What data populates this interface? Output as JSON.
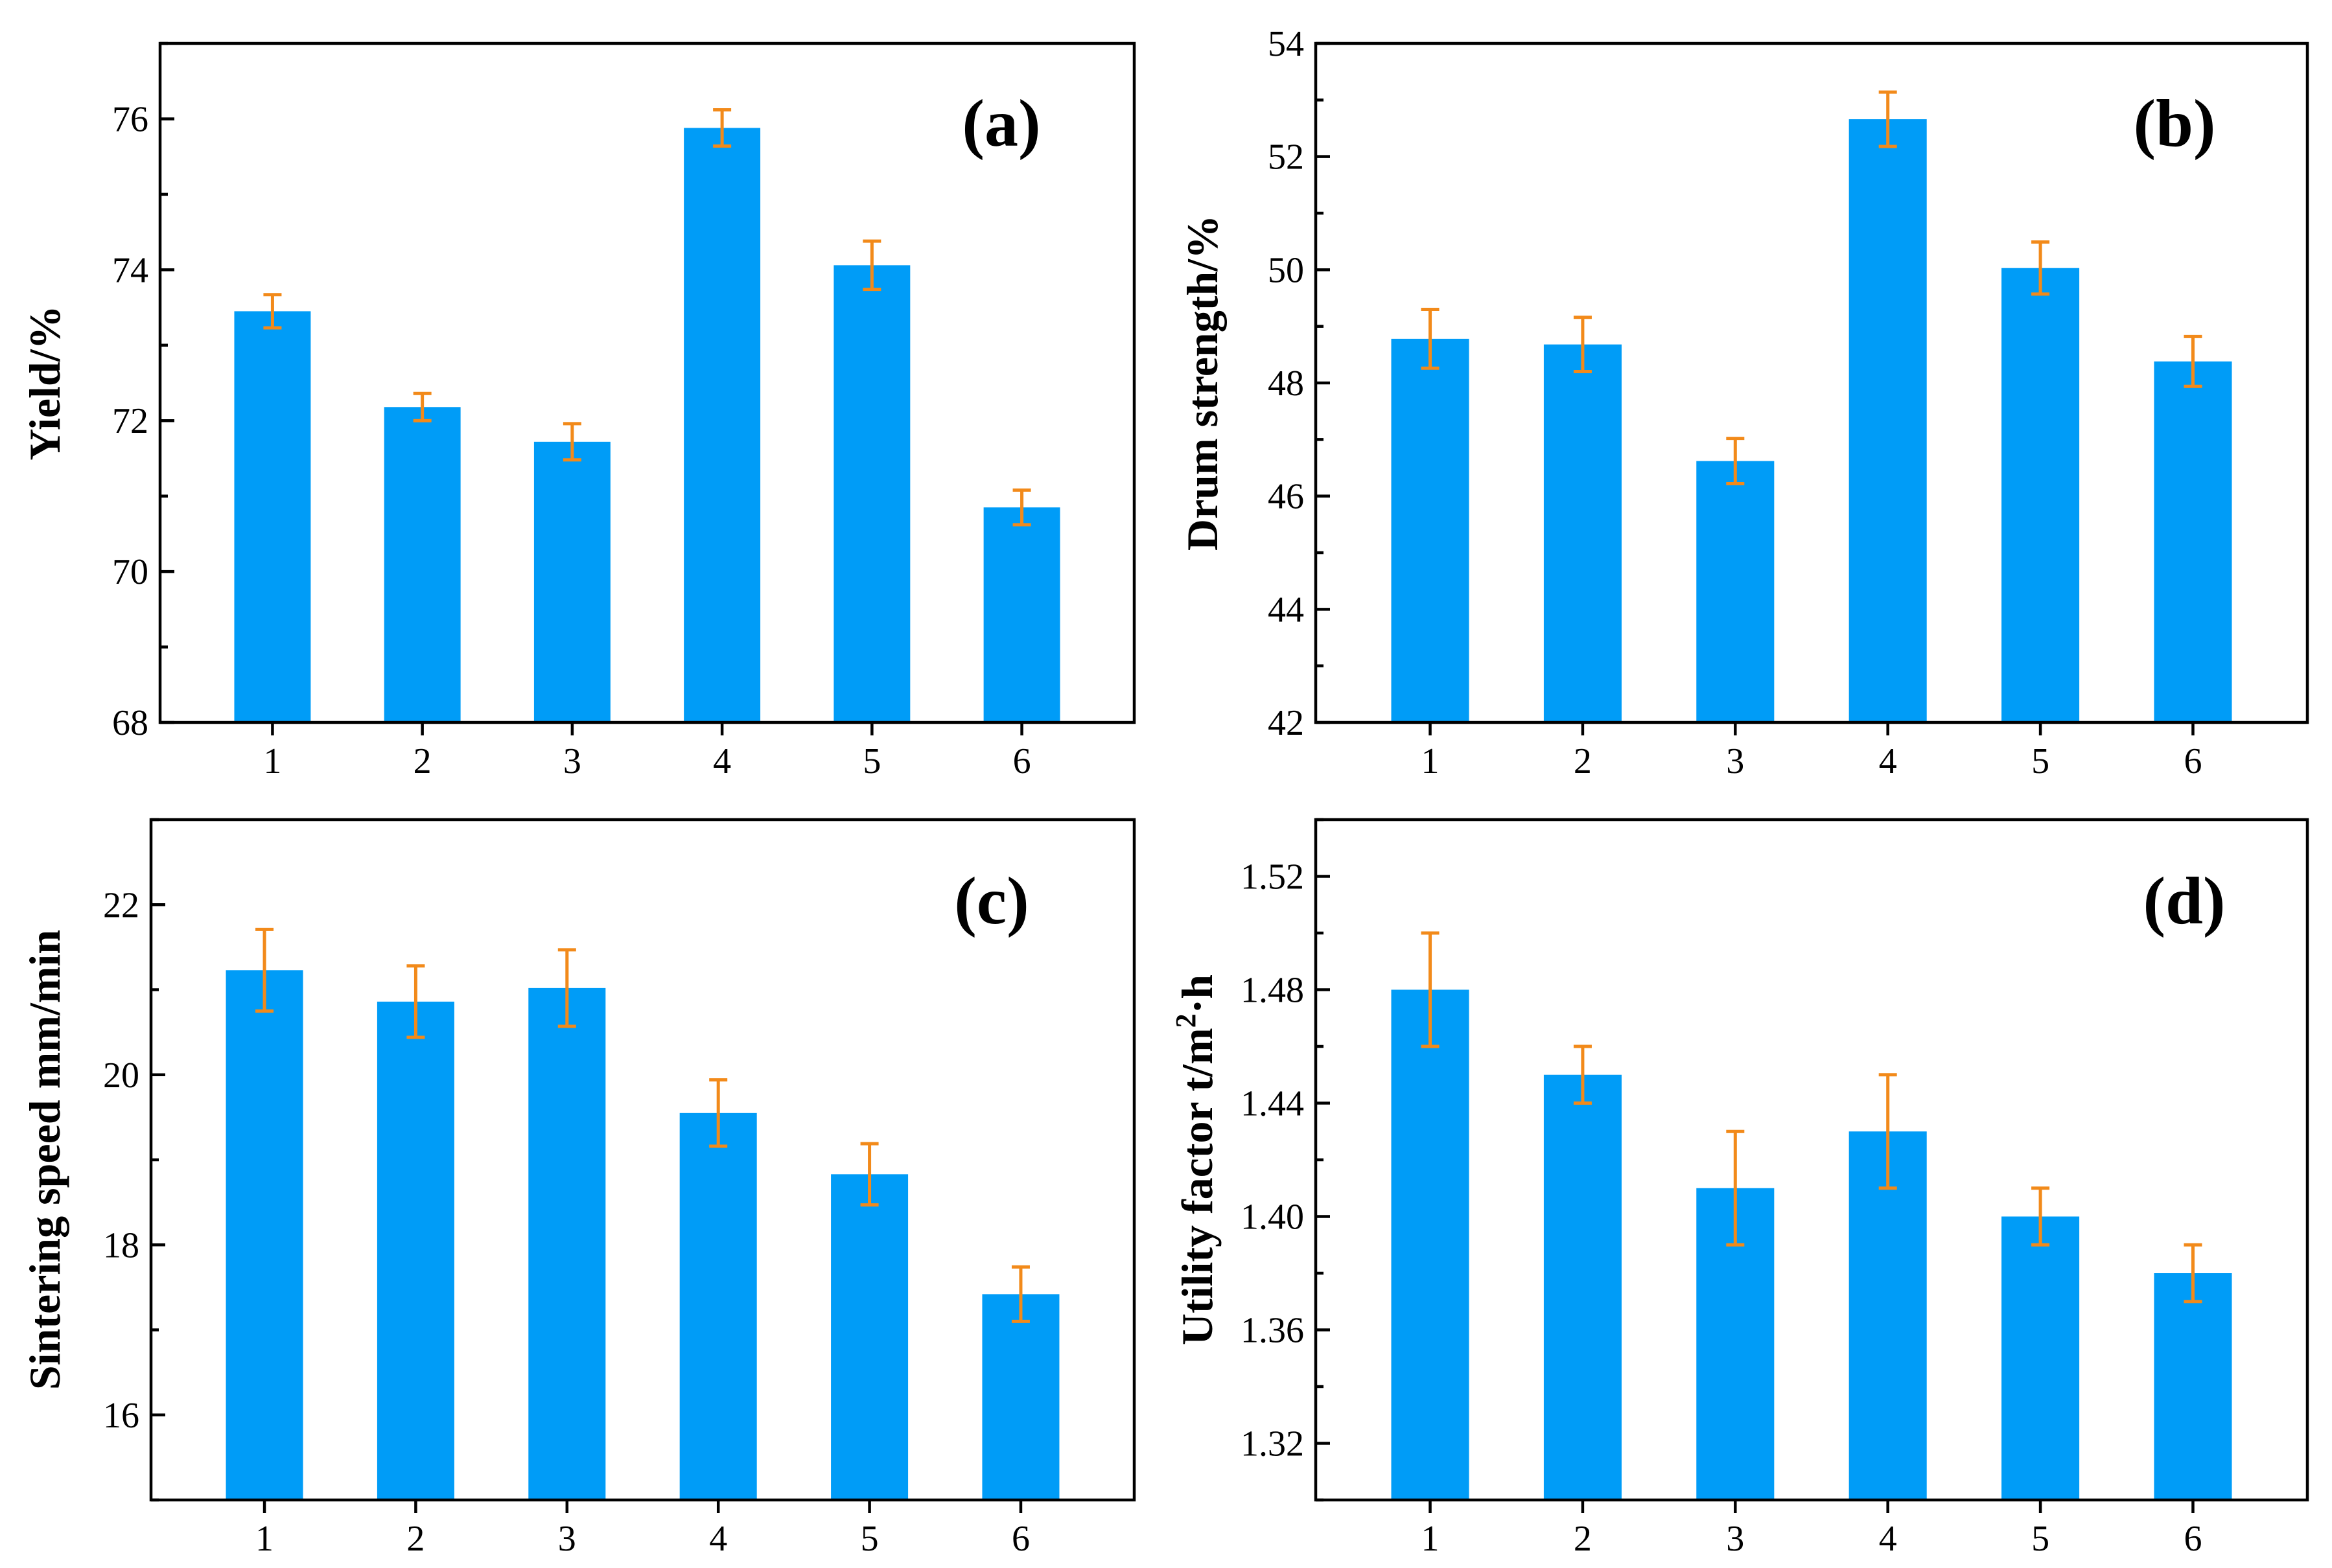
{
  "style": {
    "bar_color": "#009cf7",
    "error_color": "#f28a1a",
    "axis_color": "#000000"
  },
  "chart_data": [
    {
      "type": "bar",
      "panel": "(a)",
      "ylabel": "Yield/%",
      "categories": [
        "1",
        "2",
        "3",
        "4",
        "5",
        "6"
      ],
      "values": [
        73.45,
        72.18,
        71.72,
        75.88,
        74.06,
        70.85
      ],
      "errors": [
        0.22,
        0.18,
        0.24,
        0.24,
        0.32,
        0.23
      ],
      "ylim": [
        68,
        77
      ],
      "yticks": [
        68,
        70,
        72,
        74,
        76
      ],
      "ytick_labels": [
        "68",
        "70",
        "72",
        "74",
        "76"
      ],
      "decimals": 0
    },
    {
      "type": "bar",
      "panel": "(b)",
      "ylabel": "Drum strength/%",
      "categories": [
        "1",
        "2",
        "3",
        "4",
        "5",
        "6"
      ],
      "values": [
        48.78,
        48.68,
        46.62,
        52.66,
        50.03,
        48.38
      ],
      "errors": [
        0.52,
        0.48,
        0.4,
        0.48,
        0.46,
        0.44
      ],
      "ylim": [
        42,
        54
      ],
      "yticks": [
        42,
        44,
        46,
        48,
        50,
        52,
        54
      ],
      "ytick_labels": [
        "42",
        "44",
        "46",
        "48",
        "50",
        "52",
        "54"
      ],
      "decimals": 0
    },
    {
      "type": "bar",
      "panel": "(c)",
      "ylabel": "Sintering speed mm/min",
      "categories": [
        "1",
        "2",
        "3",
        "4",
        "5",
        "6"
      ],
      "values": [
        21.23,
        20.86,
        21.02,
        19.55,
        18.83,
        17.42
      ],
      "errors": [
        0.48,
        0.42,
        0.45,
        0.39,
        0.36,
        0.32
      ],
      "ylim": [
        15,
        23
      ],
      "yticks": [
        16,
        18,
        20,
        22
      ],
      "ytick_labels": [
        "16",
        "18",
        "20",
        "22"
      ],
      "decimals": 0
    },
    {
      "type": "bar",
      "panel": "(d)",
      "ylabel": "Utility factor t/m",
      "ylabel_superscript": "2",
      "ylabel_suffix": "·h",
      "categories": [
        "1",
        "2",
        "3",
        "4",
        "5",
        "6"
      ],
      "values": [
        1.48,
        1.45,
        1.41,
        1.43,
        1.4,
        1.38
      ],
      "errors": [
        0.02,
        0.01,
        0.02,
        0.02,
        0.01,
        0.01
      ],
      "ylim": [
        1.3,
        1.54
      ],
      "yticks": [
        1.32,
        1.36,
        1.4,
        1.44,
        1.48,
        1.52
      ],
      "ytick_labels": [
        "1.32",
        "1.36",
        "1.40",
        "1.44",
        "1.48",
        "1.52"
      ],
      "decimals": 2
    }
  ]
}
